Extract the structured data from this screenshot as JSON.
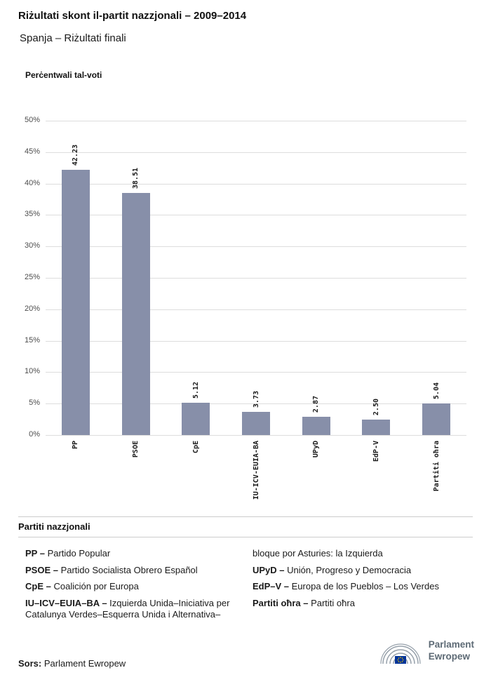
{
  "header": {
    "title": "Riżultati skont il-partit nazzjonali – 2009–2014",
    "subtitle": "Spanja – Riżultati finali"
  },
  "chart_data": {
    "type": "bar",
    "title": "Perċentwali tal-voti",
    "categories": [
      "PP",
      "PSOE",
      "CpE",
      "IU-ICV-EUIA-BA",
      "UPyD",
      "EdP-V",
      "Partiti oħra"
    ],
    "values": [
      42.23,
      38.51,
      5.12,
      3.73,
      2.87,
      2.5,
      5.04
    ],
    "value_labels": [
      "42.23",
      "38.51",
      "5.12",
      "3.73",
      "2.87",
      "2.50",
      "5.04"
    ],
    "ylabel": "Perċentwali tal-voti",
    "xlabel": "",
    "ylim": [
      0,
      50
    ],
    "ytick_step": 5,
    "ytick_labels": [
      "0%",
      "5%",
      "10%",
      "15%",
      "20%",
      "25%",
      "30%",
      "35%",
      "40%",
      "45%",
      "50%"
    ],
    "bar_color": "#878fa9",
    "grid": true,
    "legend_position": "none"
  },
  "legend": {
    "heading": "Partiti nazzjonali",
    "left_column": [
      {
        "bold": "PP –",
        "text": "Partido Popular"
      },
      {
        "bold": "PSOE –",
        "text": "Partido Socialista Obrero Español"
      },
      {
        "bold": "CpE –",
        "text": "Coalición por Europa"
      },
      {
        "bold": "IU–ICV–EUIA–BA –",
        "text": "Izquierda Unida–Iniciativa per Catalunya Verdes–Esquerra Unida i Alternativa–"
      }
    ],
    "right_column": [
      {
        "bold": "",
        "text": "bloque por Asturies: la Izquierda"
      },
      {
        "bold": "UPyD –",
        "text": "Unión, Progreso y Democracia"
      },
      {
        "bold": "EdP–V –",
        "text": "Europa de los Pueblos – Los Verdes"
      },
      {
        "bold": "Partiti oħra –",
        "text": "Partiti oħra"
      }
    ]
  },
  "footer": {
    "source_label": "Sors:",
    "source_value": "Parlament Ewropew",
    "logo_line1": "Parlament",
    "logo_line2": "Ewropew"
  }
}
